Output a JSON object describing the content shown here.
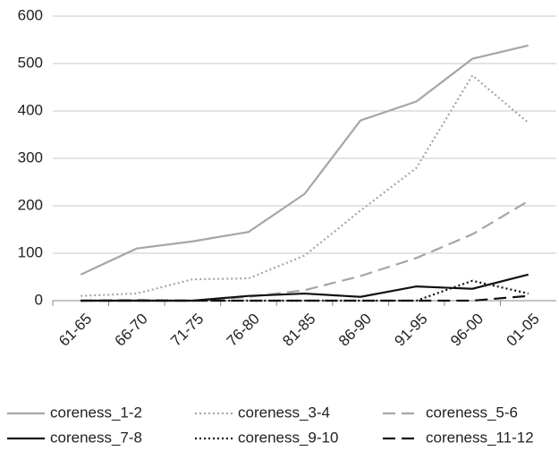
{
  "chart_data": {
    "type": "line",
    "categories": [
      "61-65",
      "66-70",
      "71-75",
      "76-80",
      "81-85",
      "86-90",
      "91-95",
      "96-00",
      "01-05"
    ],
    "series": [
      {
        "name": "coreness_1-2",
        "color": "#a6a6a6",
        "dash": "solid",
        "values": [
          55,
          110,
          125,
          145,
          225,
          380,
          420,
          510,
          538
        ]
      },
      {
        "name": "coreness_3-4",
        "color": "#a6a6a6",
        "dash": "dotted",
        "values": [
          10,
          15,
          45,
          47,
          95,
          190,
          280,
          475,
          375
        ]
      },
      {
        "name": "coreness_5-6",
        "color": "#a6a6a6",
        "dash": "dashed",
        "values": [
          0,
          2,
          0,
          8,
          22,
          52,
          90,
          140,
          210
        ]
      },
      {
        "name": "coreness_7-8",
        "color": "#111111",
        "dash": "solid",
        "values": [
          0,
          0,
          0,
          10,
          15,
          8,
          30,
          25,
          55
        ]
      },
      {
        "name": "coreness_9-10",
        "color": "#111111",
        "dash": "dotted",
        "values": [
          0,
          0,
          0,
          0,
          0,
          0,
          0,
          42,
          15
        ]
      },
      {
        "name": "coreness_11-12",
        "color": "#111111",
        "dash": "dashed",
        "values": [
          0,
          0,
          0,
          0,
          0,
          0,
          0,
          0,
          10
        ]
      }
    ],
    "ylim": [
      0,
      600
    ],
    "yticks": [
      0,
      100,
      200,
      300,
      400,
      500,
      600
    ],
    "grid": true,
    "legend": "bottom"
  }
}
